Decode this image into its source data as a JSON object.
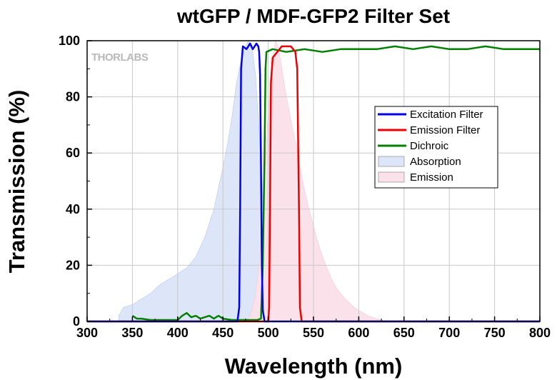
{
  "chart_data": {
    "type": "line",
    "title": "wtGFP / MDF-GFP2 Filter Set",
    "xlabel": "Wavelength (nm)",
    "ylabel": "Transmission (%)",
    "xlim": [
      300,
      800
    ],
    "ylim": [
      0,
      100
    ],
    "xticks": [
      300,
      350,
      400,
      450,
      500,
      550,
      600,
      650,
      700,
      750,
      800
    ],
    "yticks": [
      0,
      20,
      40,
      60,
      80,
      100
    ],
    "grid": true,
    "legend_position": "center-right",
    "watermark": "THORLABS",
    "series": [
      {
        "name": "Excitation Filter",
        "style": "line",
        "color": "#0000ee",
        "points": [
          [
            300,
            0
          ],
          [
            466,
            0
          ],
          [
            468,
            5
          ],
          [
            469,
            40
          ],
          [
            470,
            90
          ],
          [
            472,
            98
          ],
          [
            476,
            97
          ],
          [
            480,
            99
          ],
          [
            483,
            97
          ],
          [
            487,
            99
          ],
          [
            489,
            98
          ],
          [
            490,
            96
          ],
          [
            491,
            88
          ],
          [
            492,
            55
          ],
          [
            493,
            20
          ],
          [
            494,
            4
          ],
          [
            496,
            0
          ],
          [
            800,
            0
          ]
        ]
      },
      {
        "name": "Emission Filter",
        "style": "line",
        "color": "#ee0000",
        "points": [
          [
            300,
            0
          ],
          [
            500,
            0
          ],
          [
            501,
            5
          ],
          [
            502,
            40
          ],
          [
            503,
            85
          ],
          [
            505,
            94
          ],
          [
            510,
            96
          ],
          [
            515,
            98
          ],
          [
            520,
            98
          ],
          [
            525,
            98
          ],
          [
            530,
            96
          ],
          [
            532,
            90
          ],
          [
            534,
            40
          ],
          [
            535,
            5
          ],
          [
            537,
            0
          ],
          [
            800,
            0
          ]
        ]
      },
      {
        "name": "Dichroic",
        "style": "line",
        "color": "#008000",
        "points": [
          [
            350,
            2
          ],
          [
            355,
            1
          ],
          [
            360,
            1
          ],
          [
            370,
            0.5
          ],
          [
            380,
            0.5
          ],
          [
            400,
            0.5
          ],
          [
            405,
            2
          ],
          [
            410,
            3
          ],
          [
            415,
            1.5
          ],
          [
            420,
            2
          ],
          [
            425,
            1
          ],
          [
            430,
            1.5
          ],
          [
            435,
            2
          ],
          [
            440,
            1
          ],
          [
            445,
            2
          ],
          [
            450,
            1
          ],
          [
            460,
            0.5
          ],
          [
            470,
            0.5
          ],
          [
            488,
            0.5
          ],
          [
            492,
            1
          ],
          [
            494,
            20
          ],
          [
            496,
            60
          ],
          [
            497,
            90
          ],
          [
            498,
            96
          ],
          [
            505,
            97
          ],
          [
            520,
            96
          ],
          [
            540,
            97
          ],
          [
            560,
            96
          ],
          [
            580,
            97
          ],
          [
            600,
            97
          ],
          [
            620,
            97
          ],
          [
            640,
            98
          ],
          [
            660,
            97
          ],
          [
            680,
            98
          ],
          [
            700,
            97
          ],
          [
            720,
            97
          ],
          [
            740,
            98
          ],
          [
            760,
            97
          ],
          [
            780,
            97
          ],
          [
            800,
            97
          ]
        ]
      },
      {
        "name": "Absorption",
        "style": "area",
        "color": "#dde6f8",
        "stroke": "#b8c8ee",
        "points": [
          [
            335,
            2
          ],
          [
            340,
            5
          ],
          [
            350,
            6
          ],
          [
            360,
            8
          ],
          [
            370,
            10
          ],
          [
            380,
            13
          ],
          [
            390,
            15
          ],
          [
            400,
            17
          ],
          [
            410,
            19
          ],
          [
            420,
            23
          ],
          [
            430,
            30
          ],
          [
            440,
            40
          ],
          [
            450,
            55
          ],
          [
            455,
            63
          ],
          [
            460,
            73
          ],
          [
            465,
            85
          ],
          [
            470,
            93
          ],
          [
            475,
            98
          ],
          [
            478,
            100
          ],
          [
            480,
            99
          ],
          [
            483,
            96
          ],
          [
            486,
            88
          ],
          [
            490,
            68
          ],
          [
            494,
            45
          ],
          [
            498,
            20
          ],
          [
            502,
            8
          ],
          [
            506,
            2
          ],
          [
            510,
            0
          ]
        ]
      },
      {
        "name": "Emission",
        "style": "area",
        "color": "#fbe2ea",
        "stroke": "#f5c8d6",
        "points": [
          [
            475,
            0
          ],
          [
            480,
            2
          ],
          [
            485,
            8
          ],
          [
            490,
            20
          ],
          [
            495,
            45
          ],
          [
            500,
            75
          ],
          [
            505,
            92
          ],
          [
            508,
            100
          ],
          [
            511,
            98
          ],
          [
            515,
            90
          ],
          [
            520,
            80
          ],
          [
            525,
            72
          ],
          [
            530,
            64
          ],
          [
            535,
            55
          ],
          [
            540,
            47
          ],
          [
            545,
            40
          ],
          [
            550,
            34
          ],
          [
            555,
            28
          ],
          [
            560,
            23
          ],
          [
            565,
            19
          ],
          [
            570,
            15
          ],
          [
            575,
            12
          ],
          [
            580,
            10
          ],
          [
            585,
            8
          ],
          [
            590,
            6.5
          ],
          [
            595,
            5
          ],
          [
            600,
            4
          ],
          [
            605,
            3
          ],
          [
            610,
            2
          ],
          [
            615,
            1.5
          ],
          [
            620,
            1
          ],
          [
            625,
            0.5
          ],
          [
            630,
            0
          ]
        ]
      }
    ]
  }
}
